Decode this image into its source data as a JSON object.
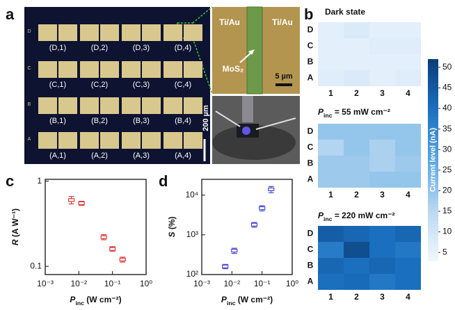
{
  "panel_labels": [
    "a",
    "b",
    "c",
    "d"
  ],
  "panel_a": {
    "row_marks": [
      "D",
      "C",
      "B",
      "A"
    ],
    "devices": [
      [
        "(D,1)",
        "(D,2)",
        "(D,3)",
        "(D,4)"
      ],
      [
        "(C,1)",
        "(C,2)",
        "(C,3)",
        "(C,4)"
      ],
      [
        "(B,1)",
        "(B,2)",
        "(B,3)",
        "(B,4)"
      ],
      [
        "(A,1)",
        "(A,2)",
        "(A,3)",
        "(A,4)"
      ]
    ],
    "electrode_labels": [
      "Ti/Au",
      "Ti/Au"
    ],
    "material": "MoS₂",
    "inset_scale": "5 µm",
    "main_scale": "200 µm"
  },
  "chart_data": [
    {
      "type": "heatmap",
      "title_parts": [
        {
          "text": "Dark state"
        }
      ],
      "rows": [
        "D",
        "C",
        "B",
        "A"
      ],
      "columns": [
        1,
        2,
        3,
        4
      ],
      "values": [
        [
          6,
          8,
          6,
          6
        ],
        [
          6,
          6,
          7,
          7
        ],
        [
          6,
          6,
          6,
          6
        ],
        [
          7,
          8,
          6,
          7
        ]
      ]
    },
    {
      "type": "heatmap",
      "title_parts": [
        {
          "text": "P"
        },
        {
          "sub": "inc"
        },
        {
          "text": " = 55 mW cm⁻²"
        }
      ],
      "rows": [
        "D",
        "C",
        "B",
        "A"
      ],
      "columns": [
        1,
        2,
        3,
        4
      ],
      "values": [
        [
          20,
          20,
          20,
          20
        ],
        [
          16,
          20,
          17,
          20
        ],
        [
          19,
          19,
          17,
          19
        ],
        [
          19,
          19,
          20,
          20
        ]
      ]
    },
    {
      "type": "heatmap",
      "title_parts": [
        {
          "text": "P"
        },
        {
          "sub": "inc"
        },
        {
          "text": " = 220 mW cm⁻²"
        }
      ],
      "rows": [
        "D",
        "C",
        "B",
        "A"
      ],
      "columns": [
        1,
        2,
        3,
        4
      ],
      "values": [
        [
          44,
          42,
          40,
          42
        ],
        [
          37,
          48,
          40,
          38
        ],
        [
          42,
          40,
          42,
          40
        ],
        [
          40,
          41,
          38,
          40
        ]
      ]
    },
    {
      "type": "colorbar",
      "label": "Current level (nA)",
      "zlim": [
        3,
        52
      ],
      "zticks": [
        5,
        10,
        15,
        20,
        25,
        30,
        35,
        40,
        45,
        50
      ],
      "colors": [
        "#f0f7fd",
        "#b9d8f2",
        "#5aa6e0",
        "#1a70c0",
        "#0b3d78"
      ]
    },
    {
      "type": "scatter",
      "log_x": true,
      "log_y": true,
      "x_label_parts": [
        {
          "text": "P"
        },
        {
          "sub": "inc"
        },
        {
          "text": " (W cm⁻²)"
        }
      ],
      "y_label_parts": [
        {
          "italic": "R"
        },
        {
          "text": " (A W⁻¹)"
        }
      ],
      "xlim": [
        0.001,
        1
      ],
      "ylim": [
        0.08,
        1.05
      ],
      "xticks": [
        {
          "value": 0.001,
          "label": "10⁻³"
        },
        {
          "value": 0.01,
          "label": "10⁻²"
        },
        {
          "value": 0.1,
          "label": "10⁻¹"
        },
        {
          "value": 1,
          "label": "10⁰"
        }
      ],
      "yticks": [
        0.1,
        1
      ],
      "x": [
        0.006,
        0.012,
        0.055,
        0.1,
        0.2
      ],
      "values": [
        0.6,
        0.55,
        0.22,
        0.16,
        0.12
      ],
      "errors": [
        0.06,
        0.03,
        0.015,
        0.01,
        0.008
      ],
      "color": "#e03a3a"
    },
    {
      "type": "scatter",
      "log_x": true,
      "log_y": true,
      "x_label_parts": [
        {
          "text": "P"
        },
        {
          "sub": "inc"
        },
        {
          "text": " (W cm⁻²)"
        }
      ],
      "y_label_parts": [
        {
          "italic": "S"
        },
        {
          "text": " (%)"
        }
      ],
      "xlim": [
        0.001,
        1
      ],
      "ylim": [
        100,
        25000
      ],
      "xticks": [
        {
          "value": 0.001,
          "label": "10⁻³"
        },
        {
          "value": 0.01,
          "label": "10⁻²"
        },
        {
          "value": 0.1,
          "label": "10⁻¹"
        },
        {
          "value": 1,
          "label": "10⁰"
        }
      ],
      "yticks": [
        {
          "value": 100,
          "label": "10²"
        },
        {
          "value": 1000,
          "label": "10³"
        },
        {
          "value": 10000,
          "label": "10⁴"
        }
      ],
      "x": [
        0.006,
        0.012,
        0.055,
        0.1,
        0.2
      ],
      "values": [
        160,
        400,
        1800,
        4700,
        14000
      ],
      "errors": [
        20,
        60,
        250,
        700,
        2500
      ],
      "color": "#4a4ad0"
    }
  ]
}
